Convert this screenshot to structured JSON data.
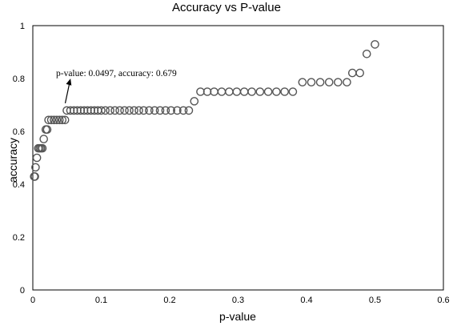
{
  "chart_data": {
    "type": "scatter",
    "title": "Accuracy vs P-value",
    "xlabel": "p-value",
    "ylabel": "accuracy",
    "xlim": [
      0,
      0.6
    ],
    "ylim": [
      0,
      1
    ],
    "x_ticks": [
      "0",
      "0.1",
      "0.2",
      "0.3",
      "0.4",
      "0.5",
      "0.6"
    ],
    "y_ticks": [
      "0",
      "0.2",
      "0.4",
      "0.6",
      "0.8",
      "1"
    ],
    "grid": false,
    "legend": "none",
    "marker": "open-circle",
    "marker_color": "#555555",
    "annotation": {
      "text": "p-value: 0.0497,  accuracy: 0.679",
      "x": 0.0497,
      "y": 0.679
    },
    "points": [
      [
        0.002,
        0.429
      ],
      [
        0.003,
        0.429
      ],
      [
        0.004,
        0.464
      ],
      [
        0.006,
        0.5
      ],
      [
        0.008,
        0.536
      ],
      [
        0.01,
        0.536
      ],
      [
        0.012,
        0.536
      ],
      [
        0.014,
        0.536
      ],
      [
        0.016,
        0.571
      ],
      [
        0.019,
        0.607
      ],
      [
        0.021,
        0.607
      ],
      [
        0.023,
        0.643
      ],
      [
        0.027,
        0.643
      ],
      [
        0.031,
        0.643
      ],
      [
        0.035,
        0.643
      ],
      [
        0.039,
        0.643
      ],
      [
        0.043,
        0.643
      ],
      [
        0.047,
        0.643
      ],
      [
        0.0497,
        0.679
      ],
      [
        0.055,
        0.679
      ],
      [
        0.06,
        0.679
      ],
      [
        0.065,
        0.679
      ],
      [
        0.07,
        0.679
      ],
      [
        0.075,
        0.679
      ],
      [
        0.08,
        0.679
      ],
      [
        0.085,
        0.679
      ],
      [
        0.09,
        0.679
      ],
      [
        0.095,
        0.679
      ],
      [
        0.1,
        0.679
      ],
      [
        0.106,
        0.679
      ],
      [
        0.113,
        0.679
      ],
      [
        0.12,
        0.679
      ],
      [
        0.127,
        0.679
      ],
      [
        0.134,
        0.679
      ],
      [
        0.141,
        0.679
      ],
      [
        0.148,
        0.679
      ],
      [
        0.155,
        0.679
      ],
      [
        0.162,
        0.679
      ],
      [
        0.17,
        0.679
      ],
      [
        0.178,
        0.679
      ],
      [
        0.186,
        0.679
      ],
      [
        0.194,
        0.679
      ],
      [
        0.202,
        0.679
      ],
      [
        0.211,
        0.679
      ],
      [
        0.22,
        0.679
      ],
      [
        0.228,
        0.679
      ],
      [
        0.236,
        0.714
      ],
      [
        0.245,
        0.75
      ],
      [
        0.255,
        0.75
      ],
      [
        0.265,
        0.75
      ],
      [
        0.276,
        0.75
      ],
      [
        0.287,
        0.75
      ],
      [
        0.298,
        0.75
      ],
      [
        0.309,
        0.75
      ],
      [
        0.32,
        0.75
      ],
      [
        0.332,
        0.75
      ],
      [
        0.344,
        0.75
      ],
      [
        0.356,
        0.75
      ],
      [
        0.368,
        0.75
      ],
      [
        0.38,
        0.75
      ],
      [
        0.394,
        0.786
      ],
      [
        0.407,
        0.786
      ],
      [
        0.42,
        0.786
      ],
      [
        0.433,
        0.786
      ],
      [
        0.446,
        0.786
      ],
      [
        0.459,
        0.786
      ],
      [
        0.467,
        0.821
      ],
      [
        0.478,
        0.821
      ],
      [
        0.488,
        0.893
      ],
      [
        0.5,
        0.929
      ]
    ]
  }
}
